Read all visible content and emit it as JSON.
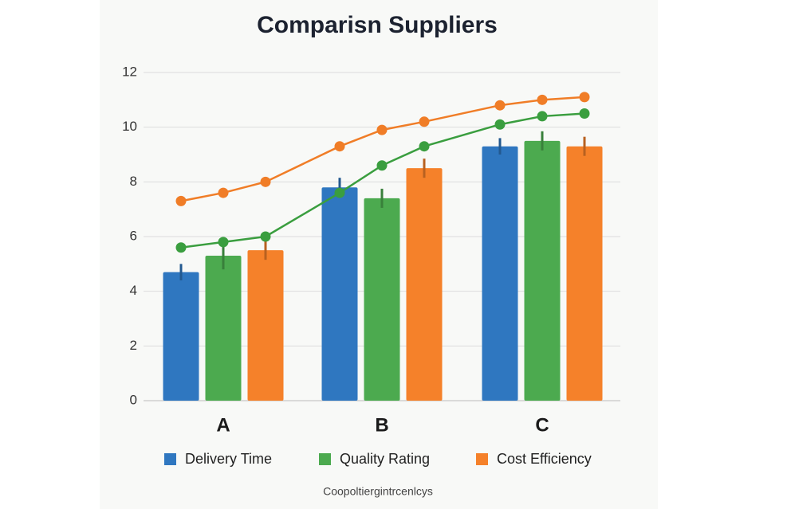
{
  "chart_data": {
    "type": "bar",
    "title": "Comparisn Suppliers",
    "categories": [
      "A",
      "B",
      "C"
    ],
    "series": [
      {
        "name": "Delivery Time",
        "color": "#2f77c0",
        "values": [
          4.7,
          7.8,
          9.3
        ],
        "errors": [
          0.3,
          0.35,
          0.3
        ]
      },
      {
        "name": "Quality Rating",
        "color": "#4caa4f",
        "values": [
          5.3,
          7.4,
          9.5
        ],
        "errors": [
          0.5,
          0.35,
          0.35
        ]
      },
      {
        "name": "Cost Efficiency",
        "color": "#f5812a",
        "values": [
          5.5,
          8.5,
          9.3
        ],
        "errors": [
          0.35,
          0.35,
          0.35
        ]
      }
    ],
    "lines": [
      {
        "color": "#f07d27",
        "values": [
          7.3,
          7.6,
          8.0,
          9.3,
          9.9,
          10.2,
          10.8,
          11.0,
          11.1
        ]
      },
      {
        "color": "#3a9e3f",
        "values": [
          5.6,
          5.8,
          6.0,
          7.6,
          8.6,
          9.3,
          10.1,
          10.4,
          10.5
        ]
      }
    ],
    "ylim": [
      0,
      12
    ],
    "yticks": [
      0,
      2,
      4,
      6,
      8,
      10,
      12
    ],
    "grid": true,
    "footer": "Coopoltiergintrcenlcys"
  }
}
